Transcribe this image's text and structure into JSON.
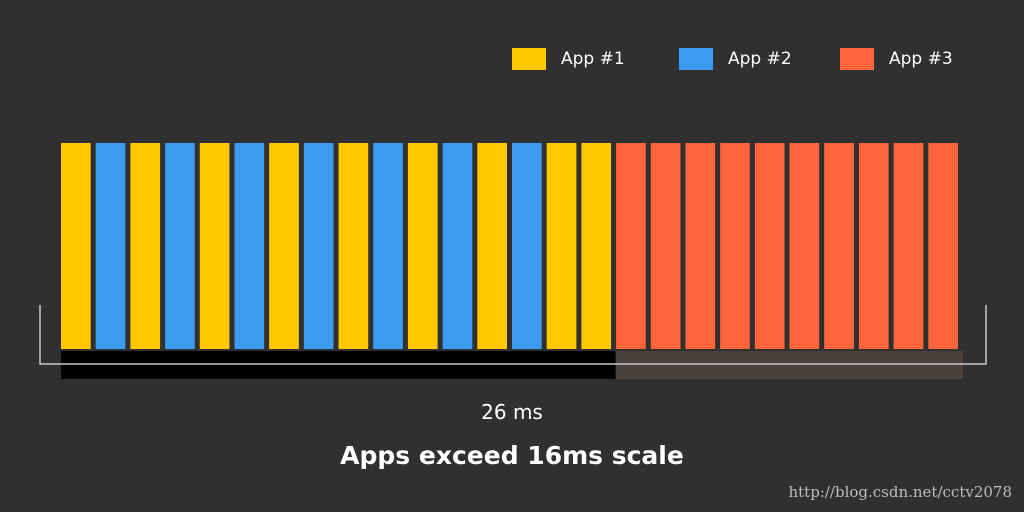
{
  "colors": {
    "background": "#303030",
    "app1": "#ffc800",
    "app2": "#3d9bf0",
    "app3": "#ff643c",
    "budget_bar": "#000000",
    "overflow_bar": "#4a413d",
    "bracket": "#c8c8c8"
  },
  "legend": [
    {
      "label": "App #1",
      "color_key": "app1"
    },
    {
      "label": "App #2",
      "color_key": "app2"
    },
    {
      "label": "App #3",
      "color_key": "app3"
    }
  ],
  "frames": [
    "app1",
    "app2",
    "app1",
    "app2",
    "app1",
    "app2",
    "app1",
    "app2",
    "app1",
    "app2",
    "app1",
    "app2",
    "app1",
    "app2",
    "app1",
    "app1",
    "app3",
    "app3",
    "app3",
    "app3",
    "app3",
    "app3",
    "app3",
    "app3",
    "app3",
    "app3"
  ],
  "timeline": {
    "duration_label": "26 ms",
    "budget_fraction": 0.615
  },
  "caption": "Apps exceed 16ms scale",
  "watermark": "http://blog.csdn.net/cctv2078"
}
